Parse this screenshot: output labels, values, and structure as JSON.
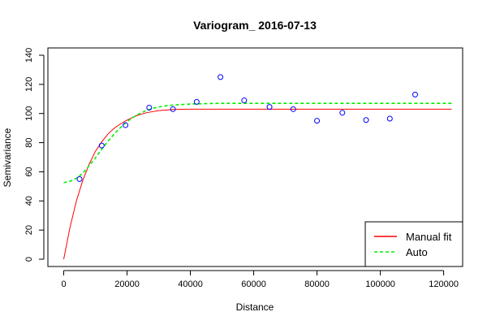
{
  "chart_data": {
    "type": "scatter",
    "title": "Variogram_ 2016-07-13",
    "xlabel": "Distance",
    "ylabel": "Semivariance",
    "xlim": [
      -5000,
      126000
    ],
    "ylim": [
      -5,
      145
    ],
    "x_ticks": [
      0,
      20000,
      40000,
      60000,
      80000,
      100000,
      120000
    ],
    "y_ticks": [
      0,
      20,
      40,
      60,
      80,
      100,
      120,
      140
    ],
    "grid": false,
    "legend_position": "bottom-right",
    "points": {
      "color": "#0000ff",
      "x": [
        5000,
        12000,
        19500,
        27000,
        34500,
        42000,
        49500,
        57000,
        65000,
        72500,
        80000,
        88000,
        95500,
        103000,
        111000
      ],
      "y": [
        55,
        78,
        92,
        104,
        103,
        108,
        125,
        109,
        104.5,
        103,
        95,
        100.5,
        95.5,
        96.5,
        113
      ]
    },
    "series": [
      {
        "name": "Manual fit",
        "color": "#ff0000",
        "style": "solid",
        "x": [
          0,
          2000,
          4000,
          6000,
          8000,
          10000,
          12000,
          14000,
          16000,
          18000,
          20000,
          23000,
          26000,
          30000,
          35000,
          40000,
          50000,
          60000,
          80000,
          100000,
          122500
        ],
        "y": [
          0,
          22,
          40,
          54,
          65,
          74,
          80.5,
          86,
          90,
          93,
          95.5,
          98.5,
          100.5,
          102,
          102.8,
          103,
          103,
          103,
          103,
          103,
          103
        ]
      },
      {
        "name": "Auto",
        "color": "#00ee00",
        "style": "dashed",
        "x": [
          0,
          2000,
          4000,
          6000,
          8000,
          10000,
          12000,
          14000,
          16000,
          18000,
          20000,
          22000,
          24000,
          26000,
          28000,
          30000,
          33000,
          36000,
          40000,
          45000,
          50000,
          60000,
          80000,
          100000,
          122500
        ],
        "y": [
          52.5,
          53.5,
          55.5,
          59,
          64,
          69.5,
          75.5,
          81,
          86,
          90.5,
          94.5,
          97.5,
          100,
          102,
          103.5,
          104.5,
          105.5,
          106,
          106.5,
          106.8,
          107,
          107,
          107,
          107,
          107
        ]
      }
    ]
  }
}
